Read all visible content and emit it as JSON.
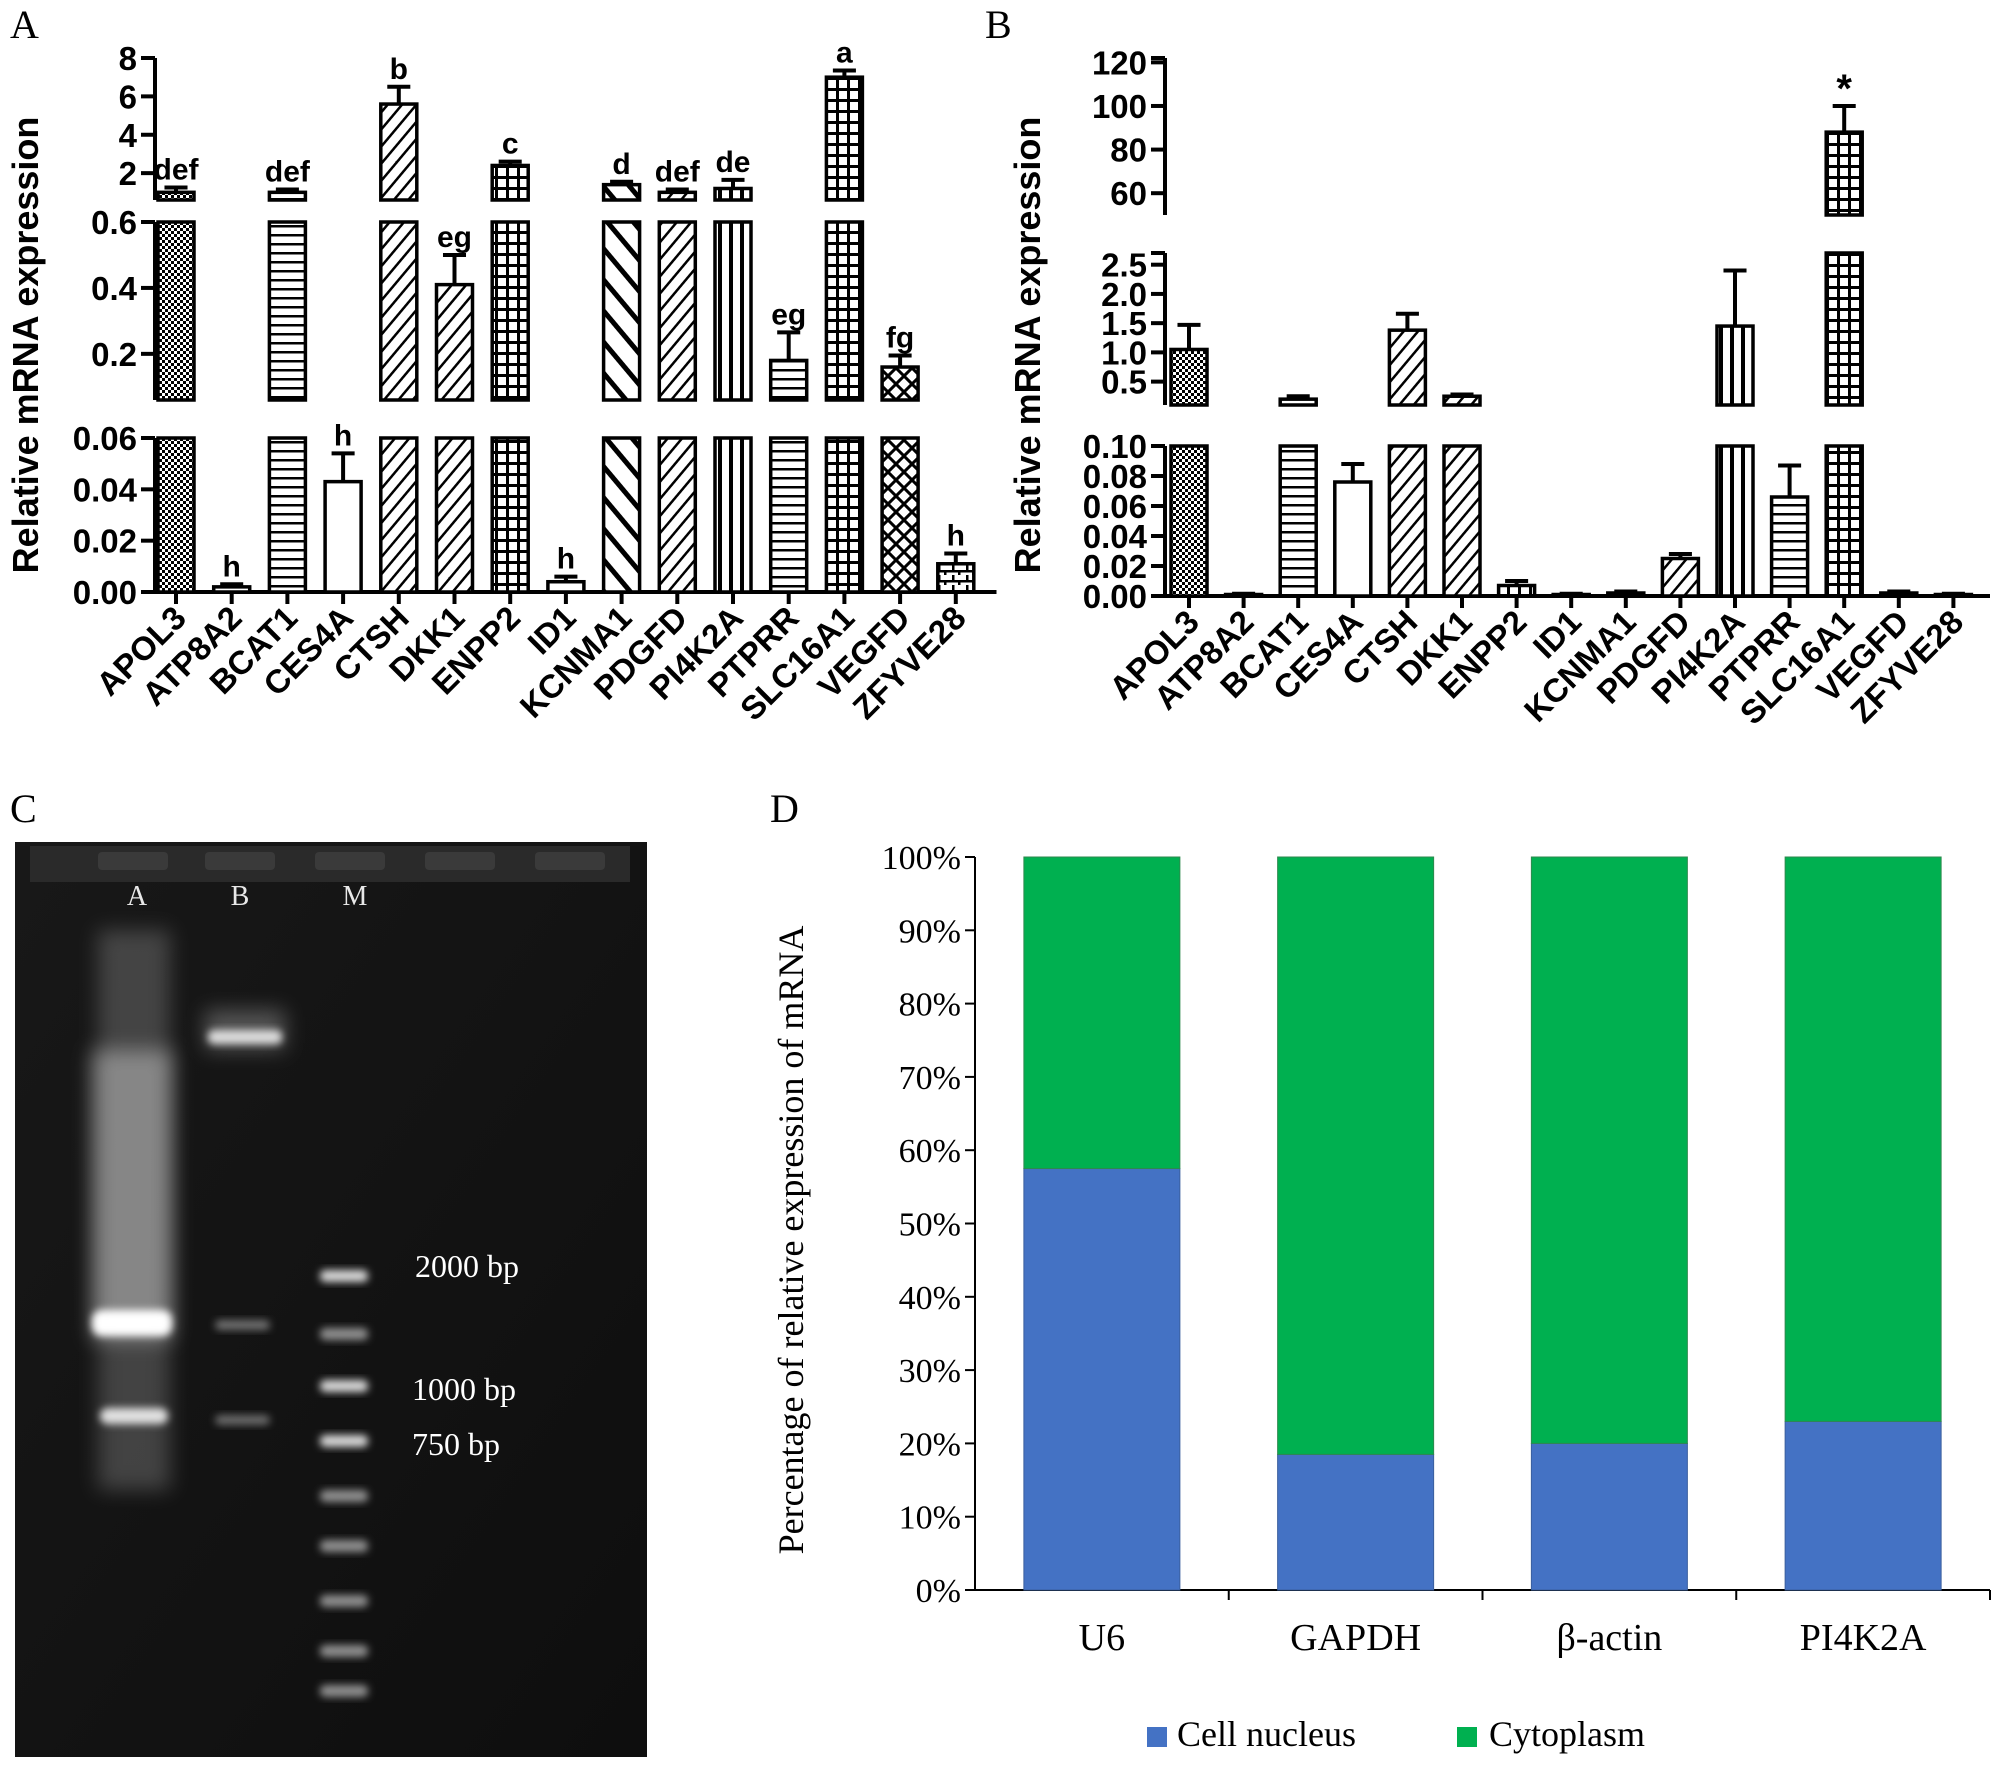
{
  "panels": {
    "A": "A",
    "B": "B",
    "C": "C",
    "D": "D"
  },
  "chart_data": [
    {
      "id": "A",
      "type": "bar",
      "axis_break": true,
      "ylabel": "Relative mRNA expression",
      "categories": [
        "APOL3",
        "ATP8A2",
        "BCAT1",
        "CES4A",
        "CTSH",
        "DKK1",
        "ENPP2",
        "ID1",
        "KCNMA1",
        "PDGFD",
        "PI4K2A",
        "PTPRR",
        "SLC16A1",
        "VEGFD",
        "ZFYVE28"
      ],
      "values": [
        1.0,
        0.002,
        1.0,
        0.043,
        5.6,
        0.41,
        2.4,
        0.004,
        1.4,
        1.0,
        1.2,
        0.18,
        7.0,
        0.16,
        0.011
      ],
      "errors": [
        0.25,
        0.001,
        0.15,
        0.011,
        0.9,
        0.09,
        0.2,
        0.002,
        0.15,
        0.15,
        0.45,
        0.085,
        0.35,
        0.035,
        0.004
      ],
      "letters": [
        "def",
        "h",
        "def",
        "h",
        "b",
        "eg",
        "c",
        "h",
        "d",
        "def",
        "de",
        "eg",
        "a",
        "fg",
        "h"
      ],
      "segments": [
        {
          "ylim": [
            0,
            0.06
          ],
          "ticks": [
            "0.00",
            "0.02",
            "0.04",
            "0.06"
          ],
          "tick_values": [
            0,
            0.02,
            0.04,
            0.06
          ]
        },
        {
          "ylim": [
            0.06,
            0.6
          ],
          "ticks": [
            "0.2",
            "0.4",
            "0.6"
          ],
          "tick_values": [
            0.2,
            0.4,
            0.6
          ]
        },
        {
          "ylim": [
            0.6,
            8
          ],
          "ticks": [
            "2",
            "4",
            "6",
            "8"
          ],
          "tick_values": [
            2,
            4,
            6,
            8
          ]
        }
      ]
    },
    {
      "id": "B",
      "type": "bar",
      "axis_break": true,
      "ylabel": "Relative mRNA expression",
      "categories": [
        "APOL3",
        "ATP8A2",
        "BCAT1",
        "CES4A",
        "CTSH",
        "DKK1",
        "ENPP2",
        "ID1",
        "KCNMA1",
        "PDGFD",
        "PI4K2A",
        "PTPRR",
        "SLC16A1",
        "VEGFD",
        "ZFYVE28"
      ],
      "values": [
        1.05,
        0.001,
        0.2,
        0.076,
        1.38,
        0.25,
        0.007,
        0.001,
        0.002,
        0.025,
        1.45,
        0.066,
        88,
        0.002,
        0.001
      ],
      "errors": [
        0.42,
        0.0005,
        0.05,
        0.012,
        0.28,
        0.03,
        0.003,
        0.0005,
        0.001,
        0.003,
        0.95,
        0.021,
        12,
        0.001,
        0.0005
      ],
      "letters": [
        "",
        "",
        "",
        "",
        "",
        "",
        "",
        "",
        "",
        "",
        "",
        "",
        "*",
        "",
        ""
      ],
      "segments": [
        {
          "ylim": [
            0,
            0.1
          ],
          "ticks": [
            "0.00",
            "0.02",
            "0.04",
            "0.06",
            "0.08",
            "0.10"
          ],
          "tick_values": [
            0,
            0.02,
            0.04,
            0.06,
            0.08,
            0.1
          ]
        },
        {
          "ylim": [
            0.1,
            2.7
          ],
          "ticks": [
            "0.5",
            "1.0",
            "1.5",
            "2.0",
            "2.5"
          ],
          "tick_values": [
            0.5,
            1.0,
            1.5,
            2.0,
            2.5
          ]
        },
        {
          "ylim": [
            50,
            122
          ],
          "ticks": [
            "60",
            "80",
            "100",
            "120"
          ],
          "tick_values": [
            60,
            80,
            100,
            120
          ]
        }
      ]
    },
    {
      "id": "C",
      "type": "gel",
      "lanes": [
        "A",
        "B",
        "M"
      ],
      "marker_labels": [
        "2000 bp",
        "1000 bp",
        "750 bp"
      ]
    },
    {
      "id": "D",
      "type": "bar",
      "stacked": true,
      "ylabel": "Percentage of relative expression of mRNA",
      "categories": [
        "U6",
        "GAPDH",
        "β-actin",
        "PI4K2A"
      ],
      "ylim": [
        0,
        100
      ],
      "yticks": [
        "0%",
        "10%",
        "20%",
        "30%",
        "40%",
        "50%",
        "60%",
        "70%",
        "80%",
        "90%",
        "100%"
      ],
      "series": [
        {
          "name": "Cell nucleus",
          "color": "#4472c4",
          "values": [
            57.5,
            18.5,
            20,
            23
          ]
        },
        {
          "name": "Cytoplasm",
          "color": "#00b050",
          "values": [
            42.5,
            81.5,
            80,
            77
          ]
        }
      ],
      "legend_position": "bottom"
    }
  ]
}
